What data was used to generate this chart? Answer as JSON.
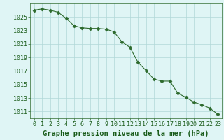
{
  "x": [
    0,
    1,
    2,
    3,
    4,
    5,
    6,
    7,
    8,
    9,
    10,
    11,
    12,
    13,
    14,
    15,
    16,
    17,
    18,
    19,
    20,
    21,
    22,
    23
  ],
  "y": [
    1026.0,
    1026.2,
    1026.0,
    1025.7,
    1024.8,
    1023.7,
    1023.4,
    1023.3,
    1023.3,
    1023.2,
    1022.8,
    1021.3,
    1020.5,
    1018.3,
    1017.1,
    1015.8,
    1015.5,
    1015.5,
    1013.7,
    1013.1,
    1012.4,
    1012.0,
    1011.5,
    1010.6
  ],
  "line_color": "#2d6a2d",
  "marker": "D",
  "marker_size": 2.5,
  "bg_color": "#dff5f5",
  "grid_color": "#b0d8d8",
  "xlabel": "Graphe pression niveau de la mer (hPa)",
  "xlabel_fontsize": 7.5,
  "xlabel_color": "#1a5c1a",
  "tick_label_color": "#1a5c1a",
  "tick_label_fontsize": 6,
  "ylim": [
    1010.0,
    1027.0
  ],
  "xlim": [
    -0.5,
    23.5
  ],
  "yticks": [
    1011,
    1013,
    1015,
    1017,
    1019,
    1021,
    1023,
    1025
  ],
  "xticks": [
    0,
    1,
    2,
    3,
    4,
    5,
    6,
    7,
    8,
    9,
    10,
    11,
    12,
    13,
    14,
    15,
    16,
    17,
    18,
    19,
    20,
    21,
    22,
    23
  ]
}
